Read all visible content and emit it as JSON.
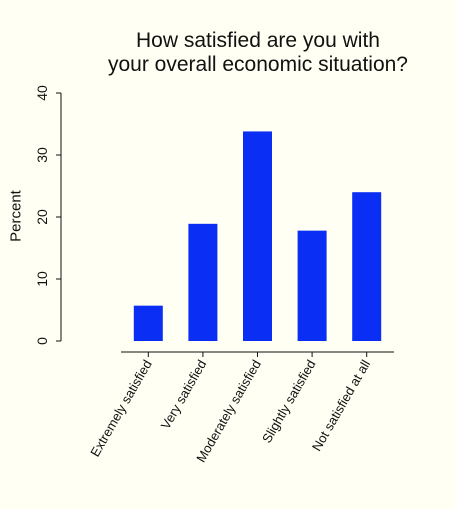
{
  "chart_data": {
    "type": "bar",
    "title_lines": [
      "How satisfied are you with",
      "your overall economic situation?"
    ],
    "ylabel": "Percent",
    "xlabel": "",
    "categories": [
      "Extremely satisfied",
      "Very satisfied",
      "Moderately satisfied",
      "Slightly satisfied",
      "Not satisfied at all"
    ],
    "values": [
      5.7,
      18.9,
      33.8,
      17.8,
      24.0
    ],
    "yticks": [
      0,
      10,
      20,
      30,
      40
    ],
    "ylim": [
      0,
      40
    ],
    "bar_color": "#0b2ef5",
    "background": "#fffff4",
    "grid": false,
    "legend": false
  }
}
